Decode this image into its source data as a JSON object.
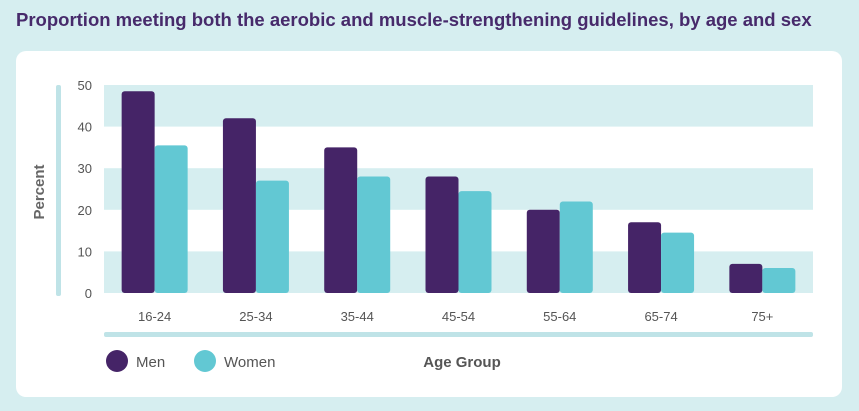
{
  "title": "Proportion meeting both the aerobic and muscle-strengthening guidelines, by age and sex",
  "chart_data": {
    "type": "bar",
    "title": "Proportion meeting both the aerobic and muscle-strengthening guidelines, by age and sex",
    "xlabel": "Age Group",
    "ylabel": "Percent",
    "ylim": [
      0,
      50
    ],
    "yticks": [
      0,
      10,
      20,
      30,
      40,
      50
    ],
    "categories": [
      "16-24",
      "25-34",
      "35-44",
      "45-54",
      "55-64",
      "65-74",
      "75+"
    ],
    "series": [
      {
        "name": "Men",
        "color": "#452467",
        "values": [
          48.5,
          42,
          35,
          28,
          20,
          17,
          7
        ]
      },
      {
        "name": "Women",
        "color": "#62c8d3",
        "values": [
          35.5,
          27,
          28,
          24.5,
          22,
          14.5,
          6
        ]
      }
    ],
    "grid": "alternating horizontal bands",
    "band_color": "#d6eef0",
    "legend_position": "bottom-left"
  }
}
